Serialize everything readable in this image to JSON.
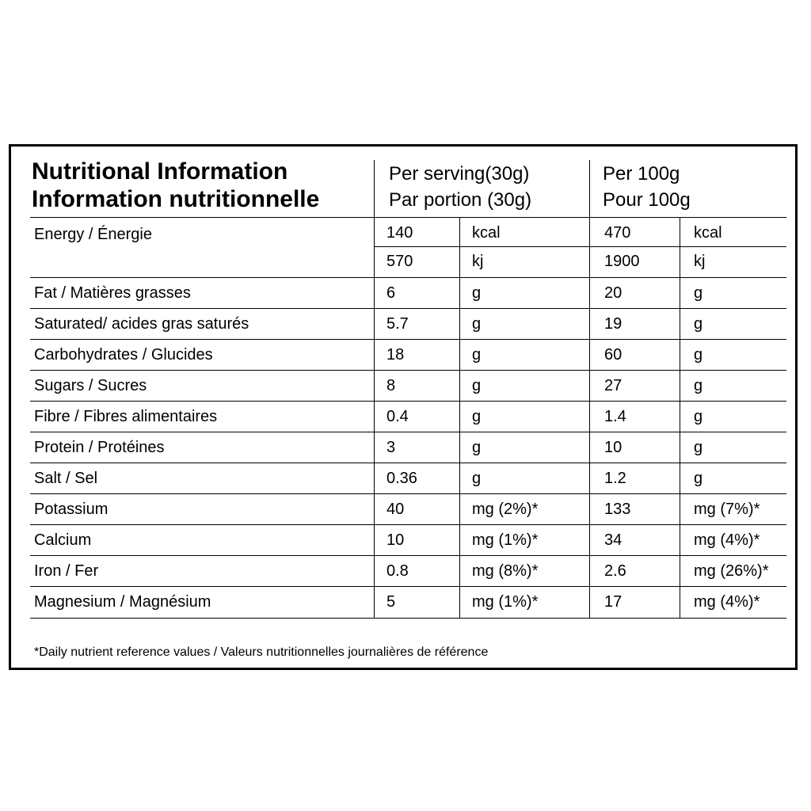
{
  "title": {
    "line1": "Nutritional Information",
    "line2": "Information nutritionnelle"
  },
  "headers": {
    "per_serving_en": "Per serving(30g)",
    "per_serving_fr": "Par portion (30g)",
    "per_100_en": "Per 100g",
    "per_100_fr": "Pour 100g"
  },
  "energy": {
    "label": "Energy / Énergie",
    "kcal": {
      "serving": "140",
      "unit": "kcal",
      "per100": "470",
      "unit100": "kcal"
    },
    "kj": {
      "serving": "570",
      "unit": "kj",
      "per100": "1900",
      "unit100": "kj"
    }
  },
  "rows": [
    {
      "label": "Fat / Matières grasses",
      "serving": "6",
      "unit": "g",
      "per100": "20",
      "unit100": "g"
    },
    {
      "label": "Saturated/ acides gras saturés",
      "serving": "5.7",
      "unit": "g",
      "per100": "19",
      "unit100": "g"
    },
    {
      "label": "Carbohydrates / Glucides",
      "serving": "18",
      "unit": "g",
      "per100": "60",
      "unit100": "g"
    },
    {
      "label": "Sugars / Sucres",
      "serving": "8",
      "unit": "g",
      "per100": "27",
      "unit100": "g"
    },
    {
      "label": "Fibre / Fibres alimentaires",
      "serving": "0.4",
      "unit": "g",
      "per100": "1.4",
      "unit100": "g"
    },
    {
      "label": "Protein / Protéines",
      "serving": "3",
      "unit": "g",
      "per100": "10",
      "unit100": "g"
    },
    {
      "label": "Salt / Sel",
      "serving": "0.36",
      "unit": "g",
      "per100": "1.2",
      "unit100": "g"
    },
    {
      "label": "Potassium",
      "serving": "40",
      "unit": "mg (2%)*",
      "per100": "133",
      "unit100": "mg (7%)*"
    },
    {
      "label": "Calcium",
      "serving": "10",
      "unit": "mg (1%)*",
      "per100": "34",
      "unit100": "mg (4%)*"
    },
    {
      "label": "Iron / Fer",
      "serving": "0.8",
      "unit": "mg (8%)*",
      "per100": "2.6",
      "unit100": "mg (26%)*"
    },
    {
      "label": "Magnesium / Magnésium",
      "serving": "5",
      "unit": "mg (1%)*",
      "per100": "17",
      "unit100": "mg (4%)*"
    }
  ],
  "footnote": "*Daily nutrient reference values / Valeurs nutritionnelles journalières de référence"
}
